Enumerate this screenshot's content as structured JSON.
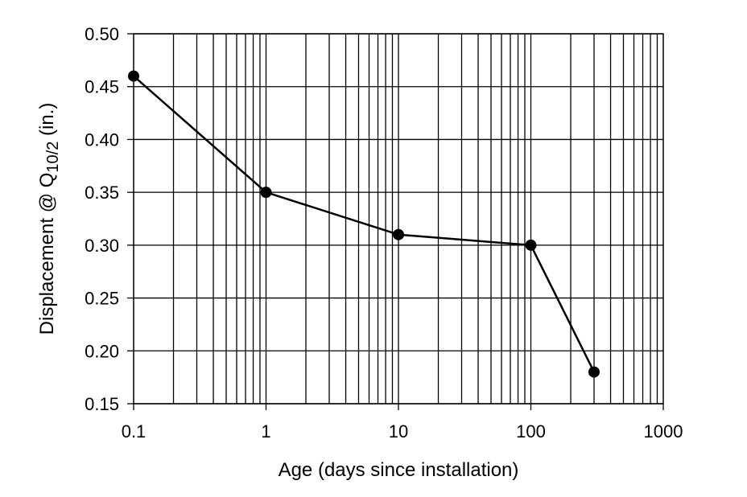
{
  "chart_data": {
    "type": "line",
    "title": "",
    "xlabel": "Age (days since installation)",
    "ylabel": {
      "prefix": "Displacement @ Q",
      "subscript": "10/2",
      "suffix": " (in.)"
    },
    "xscale": "log",
    "xlim": [
      0.1,
      1000
    ],
    "ylim": [
      0.15,
      0.5
    ],
    "x_ticks": [
      0.1,
      1,
      10,
      100,
      1000
    ],
    "x_tick_labels": [
      "0.1",
      "1",
      "10",
      "100",
      "1000"
    ],
    "y_ticks": [
      0.15,
      0.2,
      0.25,
      0.3,
      0.35,
      0.4,
      0.45,
      0.5
    ],
    "y_tick_labels": [
      "0.15",
      "0.20",
      "0.25",
      "0.30",
      "0.35",
      "0.40",
      "0.45",
      "0.50"
    ],
    "grid": true,
    "legend": null,
    "series": [
      {
        "name": "Displacement",
        "marker": "filled-circle",
        "color": "#000000",
        "x": [
          0.1,
          1,
          10,
          100,
          300
        ],
        "y": [
          0.46,
          0.35,
          0.31,
          0.3,
          0.18
        ]
      }
    ]
  }
}
